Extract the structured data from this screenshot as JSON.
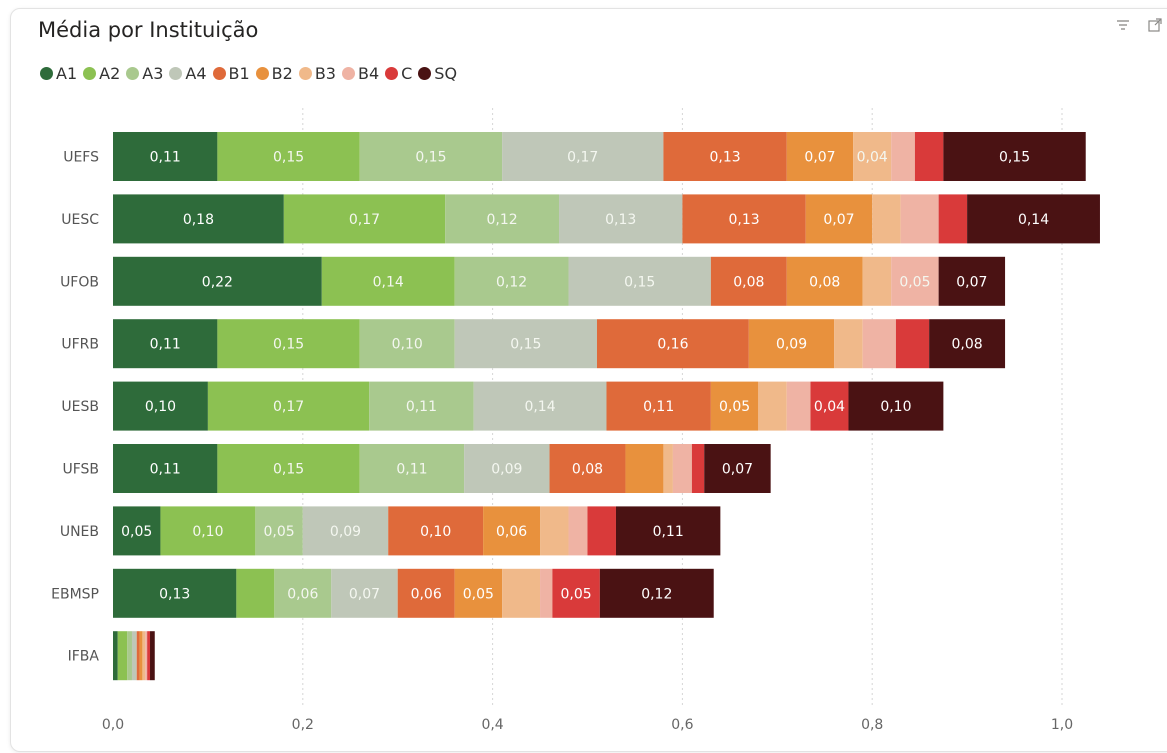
{
  "chart_data": {
    "type": "bar",
    "orientation": "horizontal",
    "stacked": true,
    "title": "Média por Instituição",
    "categories": [
      "UEFS",
      "UESC",
      "UFOB",
      "UFRB",
      "UESB",
      "UFSB",
      "UNEB",
      "EBMSP",
      "IFBA"
    ],
    "series": [
      {
        "name": "A1",
        "color": "#2e6b3a",
        "values": [
          0.11,
          0.18,
          0.22,
          0.11,
          0.1,
          0.11,
          0.05,
          0.13,
          0.005
        ],
        "labels": [
          "0,11",
          "0,18",
          "0,22",
          "0,11",
          "0,10",
          "0,11",
          "0,05",
          "0,13",
          ""
        ]
      },
      {
        "name": "A2",
        "color": "#8cc152",
        "values": [
          0.15,
          0.17,
          0.14,
          0.15,
          0.17,
          0.15,
          0.1,
          0.04,
          0.01
        ],
        "labels": [
          "0,15",
          "0,17",
          "0,14",
          "0,15",
          "0,17",
          "0,15",
          "0,10",
          "",
          ""
        ]
      },
      {
        "name": "A3",
        "color": "#a9c98e",
        "values": [
          0.15,
          0.12,
          0.12,
          0.1,
          0.11,
          0.11,
          0.05,
          0.06,
          0.005
        ],
        "labels": [
          "0,15",
          "0,12",
          "0,12",
          "0,10",
          "0,11",
          "0,11",
          "0,05",
          "0,06",
          ""
        ]
      },
      {
        "name": "A4",
        "color": "#bfc7b8",
        "values": [
          0.17,
          0.13,
          0.15,
          0.15,
          0.14,
          0.09,
          0.09,
          0.07,
          0.005
        ],
        "labels": [
          "0,17",
          "0,13",
          "0,15",
          "0,15",
          "0,14",
          "0,09",
          "0,09",
          "0,07",
          ""
        ]
      },
      {
        "name": "B1",
        "color": "#df6a3a",
        "values": [
          0.13,
          0.13,
          0.08,
          0.16,
          0.11,
          0.08,
          0.1,
          0.06,
          0.003
        ],
        "labels": [
          "0,13",
          "0,13",
          "0,08",
          "0,16",
          "0,11",
          "0,08",
          "0,10",
          "0,06",
          ""
        ]
      },
      {
        "name": "B2",
        "color": "#e8913d",
        "values": [
          0.07,
          0.07,
          0.08,
          0.09,
          0.05,
          0.04,
          0.06,
          0.05,
          0.003
        ],
        "labels": [
          "0,07",
          "0,07",
          "0,08",
          "0,09",
          "0,05",
          "",
          "0,06",
          "0,05",
          ""
        ]
      },
      {
        "name": "B3",
        "color": "#f0b98a",
        "values": [
          0.04,
          0.03,
          0.03,
          0.03,
          0.03,
          0.01,
          0.03,
          0.04,
          0.003
        ],
        "labels": [
          "0,04",
          "",
          "",
          "",
          "",
          "",
          "",
          "",
          ""
        ]
      },
      {
        "name": "B4",
        "color": "#efb3a4",
        "values": [
          0.025,
          0.04,
          0.05,
          0.035,
          0.025,
          0.02,
          0.02,
          0.013,
          0.002
        ],
        "labels": [
          "",
          "",
          "0,05",
          "",
          "",
          "",
          "",
          "",
          ""
        ]
      },
      {
        "name": "C",
        "color": "#d93a3a",
        "values": [
          0.03,
          0.03,
          0.0,
          0.035,
          0.04,
          0.013,
          0.03,
          0.05,
          0.003
        ],
        "labels": [
          "",
          "",
          "",
          "",
          "0,04",
          "",
          "",
          "0,05",
          ""
        ]
      },
      {
        "name": "SQ",
        "color": "#4a1213",
        "values": [
          0.15,
          0.14,
          0.07,
          0.08,
          0.1,
          0.07,
          0.11,
          0.12,
          0.005
        ],
        "labels": [
          "0,15",
          "0,14",
          "0,07",
          "0,08",
          "0,10",
          "0,07",
          "0,11",
          "0,12",
          ""
        ]
      }
    ],
    "xlim": [
      0,
      1.04
    ],
    "xticks": [
      0,
      0.2,
      0.4,
      0.6,
      0.8,
      1.0
    ],
    "xtick_labels": [
      "0,0",
      "0,2",
      "0,4",
      "0,6",
      "0,8",
      "1,0"
    ],
    "grid": true,
    "legend_position": "top-left"
  },
  "toolbar": {
    "icons": [
      "filter-icon",
      "focus-mode-icon"
    ]
  }
}
